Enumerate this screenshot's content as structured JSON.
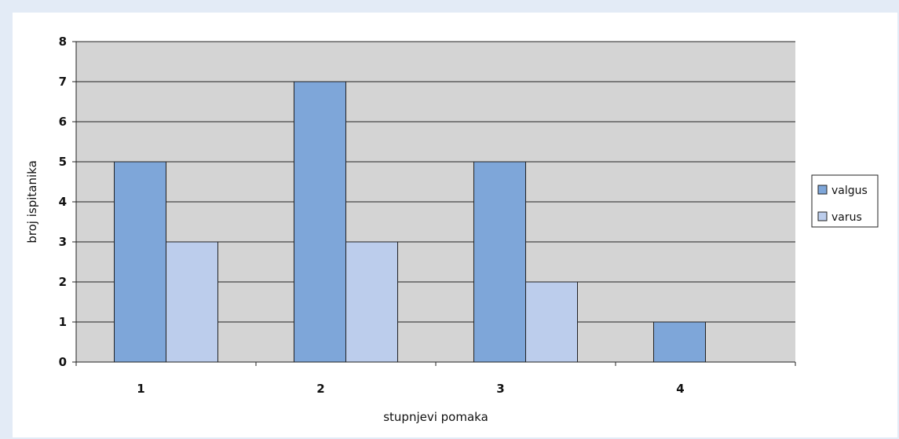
{
  "chart_data": {
    "type": "bar",
    "categories": [
      "1",
      "2",
      "3",
      "4"
    ],
    "series": [
      {
        "name": "valgus",
        "values": [
          5,
          7,
          5,
          1
        ],
        "color": "#7ea6d9"
      },
      {
        "name": "varus",
        "values": [
          3,
          3,
          2,
          0
        ],
        "color": "#bccdec"
      }
    ],
    "xlabel": "stupnjevi pomaka",
    "ylabel": "broj ispitanika",
    "ylim": [
      0,
      8
    ],
    "yticks": [
      0,
      1,
      2,
      3,
      4,
      5,
      6,
      7,
      8
    ],
    "grid": true,
    "plot_background": "#d4d4d4",
    "legend_position": "right"
  }
}
